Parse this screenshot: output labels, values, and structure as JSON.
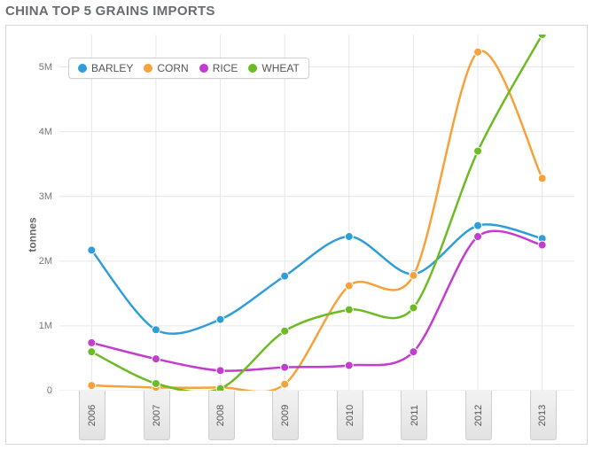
{
  "title": "CHINA TOP 5 GRAINS IMPORTS",
  "background_color": "#ffffff",
  "grid_color": "#e6e6e6",
  "frame_border_color": "#d7d7d7",
  "legend_border_color": "#d0d0d0",
  "x_axis": {
    "categories": [
      "2006",
      "2007",
      "2008",
      "2009",
      "2010",
      "2011",
      "2012",
      "2013"
    ],
    "tick_band_gradient": [
      "#f2f2f2",
      "#e2e2e2"
    ],
    "tick_band_border": "#cfcfcf",
    "label_fontsize": 11,
    "label_color": "#555555"
  },
  "y_axis": {
    "label": "tonnes",
    "min": 0,
    "max": 5500000,
    "ticks": [
      {
        "v": 0,
        "label": "0"
      },
      {
        "v": 1000000,
        "label": "1M"
      },
      {
        "v": 2000000,
        "label": "2M"
      },
      {
        "v": 3000000,
        "label": "3M"
      },
      {
        "v": 4000000,
        "label": "4M"
      },
      {
        "v": 5000000,
        "label": "5M"
      }
    ],
    "label_fontsize": 12,
    "tick_fontsize": 11,
    "tick_color": "#777777"
  },
  "curve_smoothing": 0.45,
  "marker_radius": 4.5,
  "line_width": 2.5,
  "series": [
    {
      "name": "BARLEY",
      "color": "#2f9ed8",
      "values": [
        2170000,
        940000,
        1100000,
        1770000,
        2380000,
        1800000,
        2550000,
        2350000
      ]
    },
    {
      "name": "CORN",
      "color": "#f7a13a",
      "values": [
        80000,
        50000,
        50000,
        100000,
        1620000,
        1780000,
        5230000,
        3280000
      ]
    },
    {
      "name": "RICE",
      "color": "#c33bcf",
      "values": [
        740000,
        490000,
        310000,
        360000,
        390000,
        600000,
        2380000,
        2250000
      ]
    },
    {
      "name": "WHEAT",
      "color": "#6dbb24",
      "values": [
        600000,
        110000,
        30000,
        920000,
        1250000,
        1280000,
        3700000,
        5500000
      ]
    }
  ]
}
